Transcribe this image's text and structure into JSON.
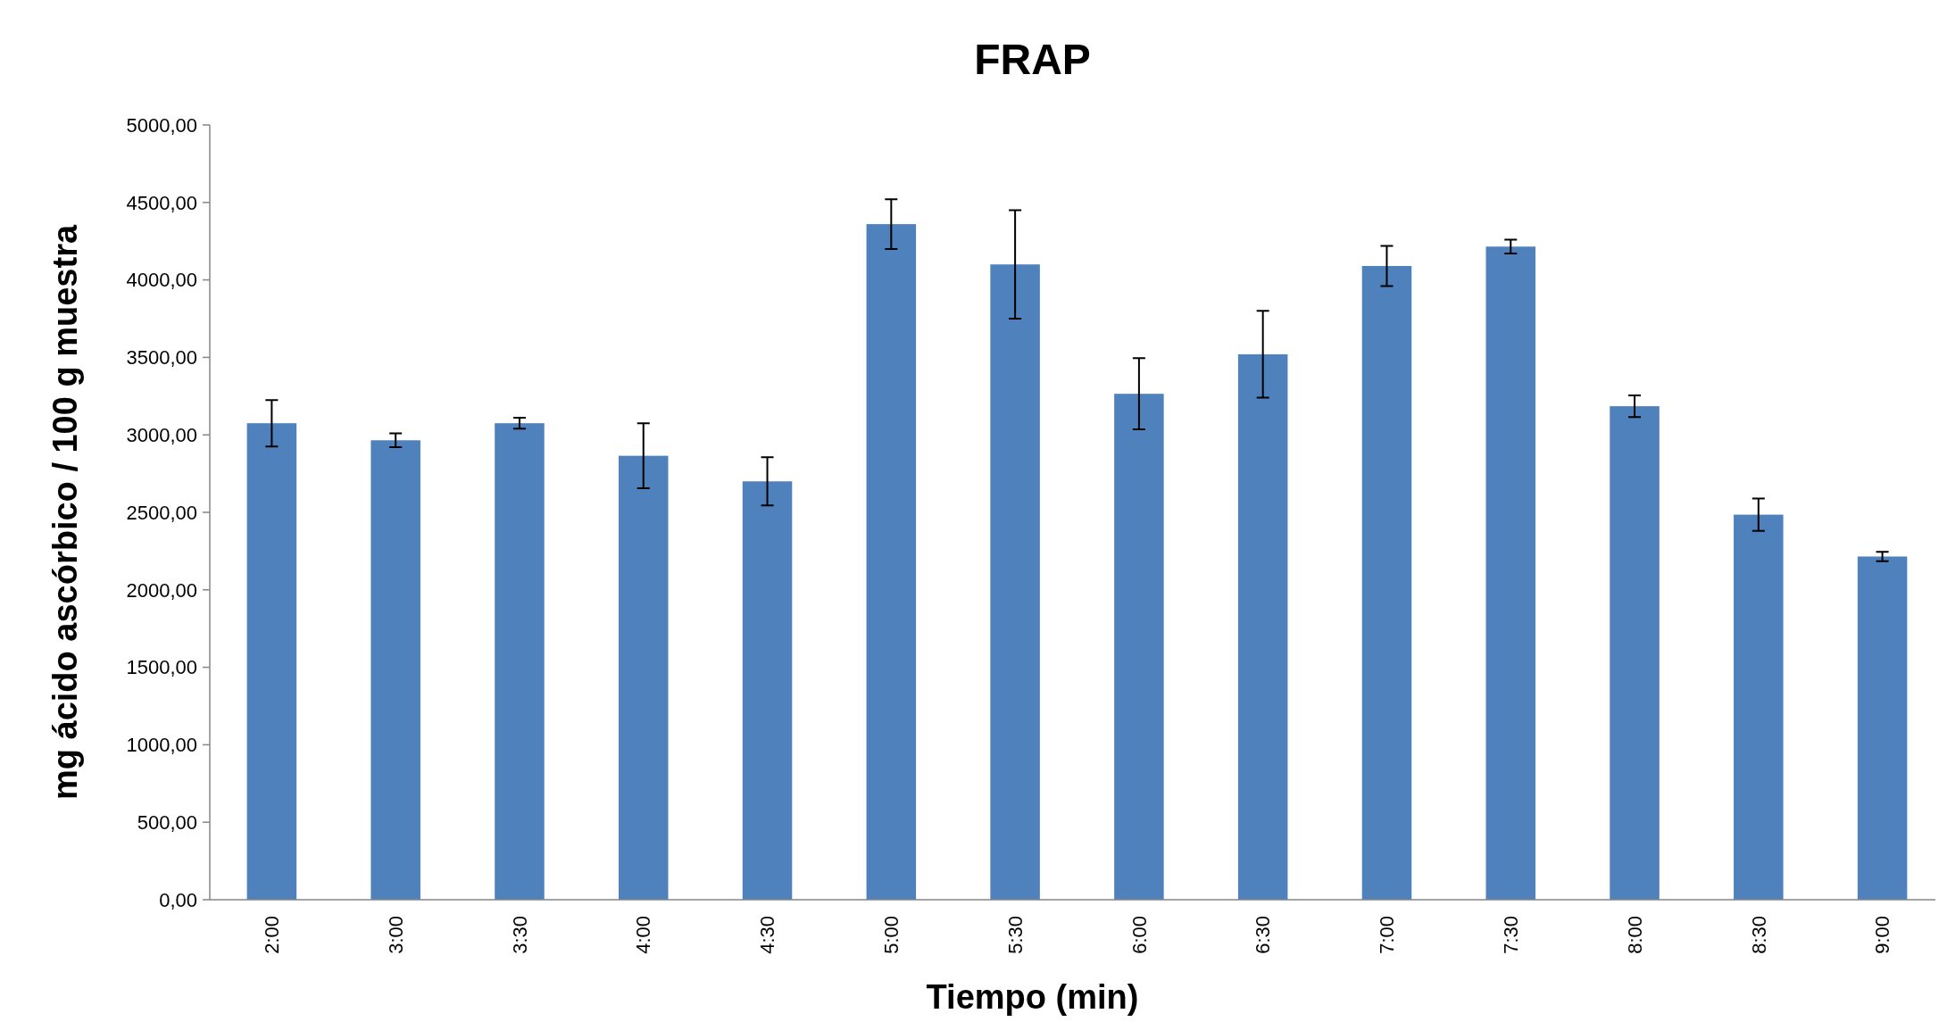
{
  "chart_data": {
    "type": "bar",
    "title": "FRAP",
    "xlabel": "Tiempo (min)",
    "ylabel": "mg ácido ascórbico / 100 g muestra",
    "categories": [
      "2:00",
      "3:00",
      "3:30",
      "4:00",
      "4:30",
      "5:00",
      "5:30",
      "6:00",
      "6:30",
      "7:00",
      "7:30",
      "8:00",
      "8:30",
      "9:00"
    ],
    "values": [
      3075,
      2965,
      3075,
      2865,
      2700,
      4360,
      4100,
      3265,
      3520,
      4090,
      4215,
      3185,
      2485,
      2215
    ],
    "errors": [
      150,
      45,
      35,
      210,
      155,
      160,
      350,
      230,
      280,
      130,
      45,
      70,
      105,
      30
    ],
    "color": "#4f81bd",
    "ylim": [
      0,
      5000
    ],
    "yticks": [
      {
        "value": 0,
        "label": "0,00"
      },
      {
        "value": 500,
        "label": "500,00"
      },
      {
        "value": 1000,
        "label": "1000,00"
      },
      {
        "value": 1500,
        "label": "1500,00"
      },
      {
        "value": 2000,
        "label": "2000,00"
      },
      {
        "value": 2500,
        "label": "2500,00"
      },
      {
        "value": 3000,
        "label": "3000,00"
      },
      {
        "value": 3500,
        "label": "3500,00"
      },
      {
        "value": 4000,
        "label": "4000,00"
      },
      {
        "value": 4500,
        "label": "4500,00"
      },
      {
        "value": 5000,
        "label": "5000,00"
      }
    ],
    "grid": false
  }
}
